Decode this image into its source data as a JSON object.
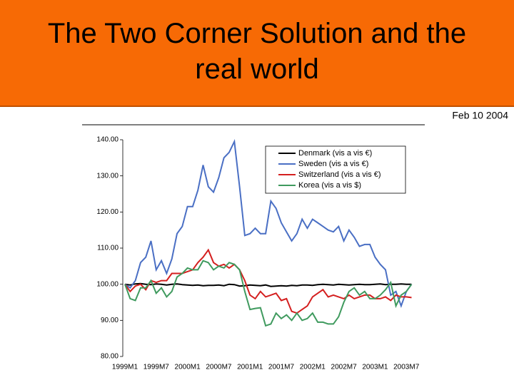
{
  "chart_data": {
    "type": "line",
    "title": "The Two Corner Solution and the real world",
    "subtitle": "Feb 10 2004",
    "categories": [
      "1999M1",
      null,
      null,
      null,
      null,
      null,
      "1999M7",
      null,
      null,
      null,
      null,
      null,
      "2000M1",
      null,
      null,
      null,
      null,
      null,
      "2000M7",
      null,
      null,
      null,
      null,
      null,
      "2001M1",
      null,
      null,
      null,
      null,
      null,
      "2001M7",
      null,
      null,
      null,
      null,
      null,
      "2002M1",
      null,
      null,
      null,
      null,
      null,
      "2002M7",
      null,
      null,
      null,
      null,
      null,
      "2003M1",
      null,
      null,
      null,
      null,
      null,
      "2003M7",
      null
    ],
    "ylim": [
      80,
      140
    ],
    "yticks": [
      {
        "value": 80,
        "label": "80.00"
      },
      {
        "value": 90,
        "label": "90.00"
      },
      {
        "value": 100,
        "label": "100.00"
      },
      {
        "value": 110,
        "label": "110.00"
      },
      {
        "value": 120,
        "label": "120.00"
      },
      {
        "value": 130,
        "label": "130.00"
      },
      {
        "value": 140,
        "label": "140.00"
      }
    ],
    "grid": false,
    "legend": "top-right",
    "series": [
      {
        "name": "Denmark (vis a vis €)",
        "color": "#000000",
        "values": [
          100,
          99.8,
          100.1,
          100.2,
          100,
          99.9,
          100.1,
          100,
          99.8,
          100,
          100.1,
          99.9,
          99.8,
          99.7,
          99.8,
          99.6,
          99.7,
          99.7,
          99.8,
          99.6,
          100,
          99.9,
          99.5,
          99.6,
          99.8,
          99.7,
          99.6,
          99.8,
          99.4,
          99.5,
          99.6,
          99.5,
          99.7,
          99.6,
          99.8,
          99.8,
          99.7,
          99.9,
          100,
          99.9,
          99.8,
          100,
          99.9,
          99.8,
          99.9,
          100,
          99.9,
          99.9,
          100,
          100.1,
          99.9,
          100,
          100,
          100.1,
          100,
          100
        ]
      },
      {
        "name": "Sweden (vis a vis €)",
        "color": "#4a6fc4",
        "values": [
          100,
          99,
          101,
          106,
          107.5,
          112,
          104,
          106.5,
          103,
          107,
          114,
          116,
          121.5,
          121.5,
          126,
          133,
          127,
          125.5,
          129.5,
          135,
          136.5,
          139.5,
          127,
          113.5,
          114,
          115.5,
          114,
          114,
          123,
          121,
          117,
          114.5,
          112,
          114,
          118,
          115.5,
          118,
          117,
          116,
          115,
          114.5,
          116,
          112,
          115,
          113,
          110.5,
          111,
          111,
          107.5,
          105.5,
          104,
          97,
          98,
          94,
          98,
          100
        ]
      },
      {
        "name": "Switzerland (vis a vis €)",
        "color": "#d41f1f",
        "values": [
          100,
          98,
          99.5,
          100,
          98.5,
          101,
          100.5,
          101,
          101,
          103,
          103,
          103,
          103.5,
          104,
          106,
          107.5,
          109.5,
          106,
          105,
          105.5,
          104.5,
          105.5,
          104,
          101,
          97,
          96,
          98,
          96.5,
          97,
          97.5,
          95.5,
          96,
          92.5,
          92,
          93,
          94,
          96.5,
          97.5,
          98.5,
          96.5,
          97,
          96.5,
          96,
          97,
          96,
          96.5,
          97,
          97,
          96,
          96,
          96.5,
          95.5,
          97,
          96.5,
          96.5,
          96.3
        ]
      },
      {
        "name": "Korea (vis a vis $)",
        "color": "#3f9a5e",
        "values": [
          100,
          96,
          95.5,
          99,
          99,
          101,
          97.5,
          99,
          96.5,
          98,
          102,
          103,
          104.5,
          104,
          104,
          106.5,
          106,
          104,
          105,
          104.5,
          106,
          105.5,
          104,
          98,
          93,
          93.3,
          93.5,
          88.5,
          89,
          92,
          90.5,
          91.5,
          90,
          92,
          90,
          90.5,
          92,
          89.5,
          89.5,
          89,
          89,
          91,
          95,
          98,
          99,
          97,
          98,
          96,
          96,
          97,
          98.5,
          100.5,
          94,
          97,
          98,
          100
        ]
      }
    ]
  }
}
